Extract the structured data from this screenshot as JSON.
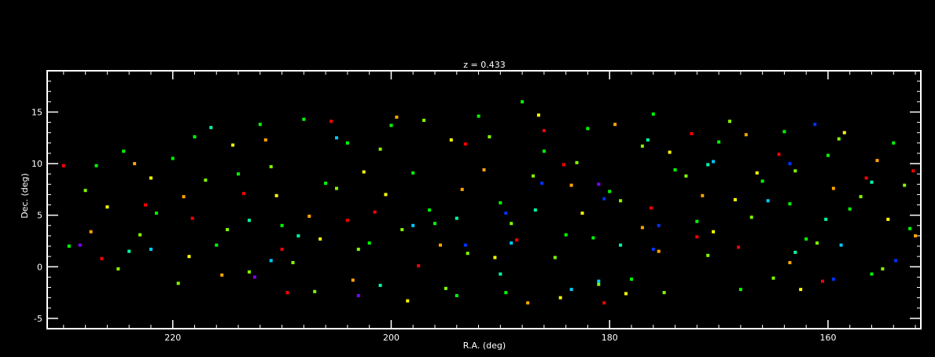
{
  "chart_data": {
    "type": "scatter",
    "title": "z = 0.433",
    "xlabel": "R.A. (deg)",
    "ylabel": "Dec. (deg)",
    "xlim": [
      231.5,
      151.5
    ],
    "ylim": [
      -6,
      19
    ],
    "x_ticks": [
      220,
      200,
      180,
      160
    ],
    "y_ticks": [
      -5,
      0,
      5,
      10,
      15
    ],
    "x_ticks_minor_step": 2,
    "y_ticks_minor_step": 1,
    "grid": false,
    "colors": {
      "background": "#000000",
      "axes": "#ffffff",
      "point_palette": [
        "#00ff00",
        "#80ff00",
        "#ffff00",
        "#ffa500",
        "#ff0000",
        "#00ffaa",
        "#00ccff",
        "#0033ff",
        "#8000ff"
      ]
    },
    "series": [
      {
        "color": "#00ff00",
        "points": [
          [
            229.5,
            2.0
          ],
          [
            227,
            9.8
          ],
          [
            224.5,
            11.2
          ],
          [
            221.5,
            5.2
          ],
          [
            220,
            10.5
          ],
          [
            218,
            12.6
          ],
          [
            216,
            2.1
          ],
          [
            214,
            9.0
          ],
          [
            212,
            13.8
          ],
          [
            210,
            4.0
          ],
          [
            208,
            14.3
          ],
          [
            206,
            8.1
          ],
          [
            204,
            12.0
          ],
          [
            202,
            2.3
          ],
          [
            200,
            13.7
          ],
          [
            198,
            9.1
          ],
          [
            196,
            4.2
          ],
          [
            194,
            -2.8
          ],
          [
            192,
            14.6
          ],
          [
            190,
            6.2
          ],
          [
            188,
            16.0
          ],
          [
            186,
            11.2
          ],
          [
            184,
            3.1
          ],
          [
            182,
            13.4
          ],
          [
            180,
            7.3
          ],
          [
            178,
            -1.2
          ],
          [
            176,
            14.8
          ],
          [
            174,
            9.4
          ],
          [
            172,
            4.4
          ],
          [
            170,
            12.1
          ],
          [
            168,
            -2.2
          ],
          [
            166,
            8.3
          ],
          [
            164,
            13.1
          ],
          [
            162,
            2.7
          ],
          [
            160,
            10.8
          ],
          [
            158,
            5.6
          ],
          [
            156,
            -0.7
          ],
          [
            154,
            12.0
          ],
          [
            152.5,
            3.7
          ],
          [
            196.5,
            5.5
          ],
          [
            189.5,
            -2.5
          ],
          [
            181.5,
            2.8
          ],
          [
            163.5,
            6.1
          ]
        ]
      },
      {
        "color": "#80ff00",
        "points": [
          [
            228,
            7.4
          ],
          [
            225,
            -0.2
          ],
          [
            223,
            3.1
          ],
          [
            219.5,
            -1.6
          ],
          [
            217,
            8.4
          ],
          [
            215,
            3.6
          ],
          [
            213,
            -0.5
          ],
          [
            211,
            9.7
          ],
          [
            209,
            0.4
          ],
          [
            207,
            -2.4
          ],
          [
            205,
            7.6
          ],
          [
            203,
            1.7
          ],
          [
            201,
            11.4
          ],
          [
            199,
            3.6
          ],
          [
            197,
            14.2
          ],
          [
            195,
            -2.1
          ],
          [
            193,
            1.3
          ],
          [
            191,
            12.6
          ],
          [
            189,
            4.2
          ],
          [
            187,
            8.8
          ],
          [
            185,
            0.9
          ],
          [
            183,
            10.1
          ],
          [
            181,
            -1.7
          ],
          [
            179,
            6.4
          ],
          [
            177,
            11.7
          ],
          [
            175,
            -2.5
          ],
          [
            173,
            8.8
          ],
          [
            171,
            1.1
          ],
          [
            169,
            14.1
          ],
          [
            167,
            4.8
          ],
          [
            165,
            -1.1
          ],
          [
            163,
            9.3
          ],
          [
            161,
            2.3
          ],
          [
            159,
            12.4
          ],
          [
            157,
            6.8
          ],
          [
            155,
            -0.2
          ],
          [
            153,
            7.9
          ]
        ]
      },
      {
        "color": "#ffff00",
        "points": [
          [
            226,
            5.8
          ],
          [
            222,
            8.6
          ],
          [
            218.5,
            1.0
          ],
          [
            214.5,
            11.8
          ],
          [
            210.5,
            6.9
          ],
          [
            206.5,
            2.7
          ],
          [
            202.5,
            9.2
          ],
          [
            198.5,
            -3.3
          ],
          [
            194.5,
            12.3
          ],
          [
            190.5,
            0.9
          ],
          [
            186.5,
            14.7
          ],
          [
            182.5,
            5.2
          ],
          [
            178.5,
            -2.6
          ],
          [
            174.5,
            11.1
          ],
          [
            170.5,
            3.4
          ],
          [
            166.5,
            9.1
          ],
          [
            162.5,
            -2.2
          ],
          [
            158.5,
            13.0
          ],
          [
            154.5,
            4.6
          ],
          [
            200.5,
            7.0
          ],
          [
            184.5,
            -3.0
          ],
          [
            168.5,
            6.5
          ]
        ]
      },
      {
        "color": "#ffa500",
        "points": [
          [
            227.5,
            3.4
          ],
          [
            223.5,
            10.0
          ],
          [
            219,
            6.8
          ],
          [
            215.5,
            -0.8
          ],
          [
            211.5,
            12.3
          ],
          [
            207.5,
            4.9
          ],
          [
            203.5,
            -1.3
          ],
          [
            199.5,
            14.5
          ],
          [
            195.5,
            2.1
          ],
          [
            191.5,
            9.4
          ],
          [
            187.5,
            -3.5
          ],
          [
            183.5,
            7.9
          ],
          [
            179.5,
            13.8
          ],
          [
            175.5,
            1.5
          ],
          [
            171.5,
            6.9
          ],
          [
            167.5,
            12.8
          ],
          [
            163.5,
            0.4
          ],
          [
            159.5,
            7.6
          ],
          [
            155.5,
            10.3
          ],
          [
            152,
            3.0
          ],
          [
            193.5,
            7.5
          ],
          [
            177,
            3.8
          ]
        ]
      },
      {
        "color": "#ff0000",
        "points": [
          [
            230,
            9.8
          ],
          [
            226.5,
            0.8
          ],
          [
            222.5,
            6.0
          ],
          [
            218.2,
            4.7
          ],
          [
            213.5,
            7.1
          ],
          [
            209.5,
            -2.5
          ],
          [
            205.5,
            14.1
          ],
          [
            201.5,
            5.3
          ],
          [
            197.5,
            0.1
          ],
          [
            193.2,
            11.9
          ],
          [
            188.5,
            2.6
          ],
          [
            184.2,
            9.9
          ],
          [
            180.5,
            -3.5
          ],
          [
            176.2,
            5.7
          ],
          [
            172.5,
            12.9
          ],
          [
            168.2,
            1.9
          ],
          [
            164.5,
            10.9
          ],
          [
            160.5,
            -1.4
          ],
          [
            156.5,
            8.6
          ],
          [
            152.2,
            9.3
          ],
          [
            204,
            4.5
          ],
          [
            172,
            2.9
          ],
          [
            186,
            13.2
          ],
          [
            210,
            1.7
          ]
        ]
      },
      {
        "color": "#00ffaa",
        "points": [
          [
            224,
            1.5
          ],
          [
            216.5,
            13.5
          ],
          [
            208.5,
            3.0
          ],
          [
            201,
            -1.8
          ],
          [
            194,
            4.7
          ],
          [
            186.8,
            5.5
          ],
          [
            179,
            2.1
          ],
          [
            171,
            9.9
          ],
          [
            163,
            1.4
          ],
          [
            156,
            8.2
          ],
          [
            213,
            4.5
          ],
          [
            190,
            -0.7
          ],
          [
            176.5,
            12.3
          ],
          [
            160.2,
            4.6
          ]
        ]
      },
      {
        "color": "#00ccff",
        "points": [
          [
            222,
            1.7
          ],
          [
            211,
            0.6
          ],
          [
            198,
            4.0
          ],
          [
            189,
            2.3
          ],
          [
            181,
            -1.4
          ],
          [
            170.5,
            10.2
          ],
          [
            158.8,
            2.1
          ],
          [
            205,
            12.5
          ],
          [
            183.5,
            -2.2
          ],
          [
            165.5,
            6.4
          ]
        ]
      },
      {
        "color": "#0033ff",
        "points": [
          [
            193.2,
            2.1
          ],
          [
            189.5,
            5.2
          ],
          [
            176,
            1.7
          ],
          [
            180.5,
            6.6
          ],
          [
            175.5,
            4.0
          ],
          [
            163.5,
            10.0
          ],
          [
            161.2,
            13.8
          ],
          [
            159.5,
            -1.2
          ],
          [
            153.8,
            0.6
          ],
          [
            186.2,
            8.1
          ]
        ]
      },
      {
        "color": "#8000ff",
        "points": [
          [
            228.5,
            2.1
          ],
          [
            212.5,
            -1.0
          ],
          [
            203,
            -2.8
          ],
          [
            181,
            8.0
          ]
        ]
      }
    ]
  }
}
